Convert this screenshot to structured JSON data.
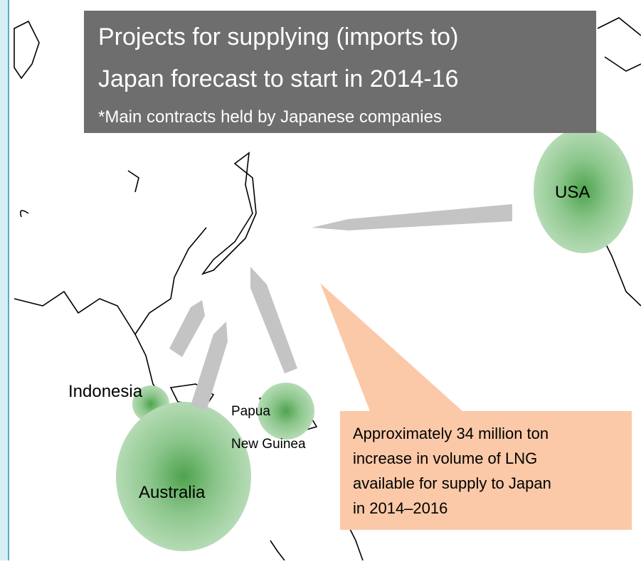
{
  "header": {
    "title_lines": [
      "Projects for supplying  (imports to)",
      "Japan forecast to start in 2014-16"
    ],
    "subtitle": "*Main contracts held by Japanese companies"
  },
  "regions": [
    {
      "label_lines": [
        "USA"
      ]
    },
    {
      "label_lines": [
        "Indonesia"
      ]
    },
    {
      "label_lines": [
        "Papua",
        "New Guinea"
      ]
    },
    {
      "label_lines": [
        "Australia"
      ]
    }
  ],
  "callout": {
    "lines": [
      "Approximately 34 million ton",
      "increase in volume of LNG",
      "available for supply to Japan",
      "in 2014–2016"
    ]
  }
}
